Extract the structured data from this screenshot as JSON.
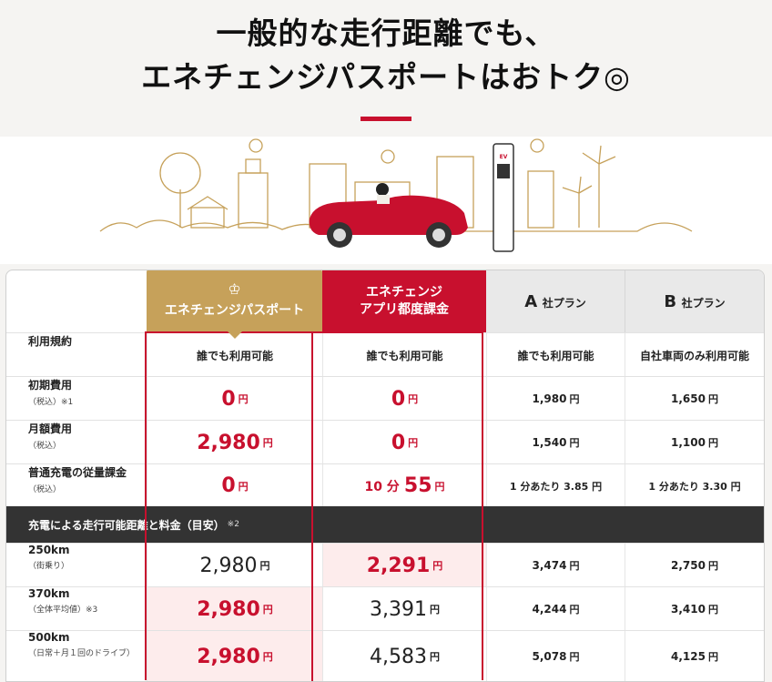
{
  "headline": {
    "line1": "一般的な走行距離でも、",
    "line2": "エネチェンジパスポートはおトク◎"
  },
  "illustration": {
    "charger_brand": "EV"
  },
  "table": {
    "headers": {
      "passport": "エネチェンジパスポート",
      "app_line1": "エネチェンジ",
      "app_line2": "アプリ都度課金",
      "a_letter": "A",
      "a_suffix": "社プラン",
      "b_letter": "B",
      "b_suffix": "社プラン"
    },
    "rows": [
      {
        "label": "利用規約",
        "sub": "",
        "passport": "誰でも利用可能",
        "app": "誰でも利用可能",
        "a": "誰でも利用可能",
        "b": "自社車両のみ利用可能"
      },
      {
        "label": "初期費用",
        "sub": "（税込）※1",
        "passport": "0",
        "passport_unit": "円",
        "app": "0",
        "app_unit": "円",
        "a": "1,980",
        "a_unit": "円",
        "b": "1,650",
        "b_unit": "円"
      },
      {
        "label": "月額費用",
        "sub": "（税込）",
        "passport": "2,980",
        "passport_unit": "円",
        "app": "0",
        "app_unit": "円",
        "a": "1,540",
        "a_unit": "円",
        "b": "1,100",
        "b_unit": "円"
      },
      {
        "label": "普通充電の従量課金",
        "sub": "（税込）",
        "passport": "0",
        "passport_unit": "円",
        "app_prefix": "10 分",
        "app": "55",
        "app_unit": "円",
        "a": "1 分あたり 3.85 円",
        "b": "1 分あたり 3.30 円"
      }
    ],
    "section_bar": {
      "label": "充電による走行可能距離と料金（目安）",
      "note": "※2"
    },
    "distance_rows": [
      {
        "label": "250km",
        "sub": "（街乗り）",
        "passport": "2,980",
        "app": "2,291",
        "a": "3,474",
        "b": "2,750",
        "unit": "円"
      },
      {
        "label": "370km",
        "sub": "（全体平均値）※3",
        "passport": "2,980",
        "app": "3,391",
        "a": "4,244",
        "b": "3,410",
        "unit": "円"
      },
      {
        "label": "500km",
        "sub": "（日常＋月１回のドライブ）",
        "passport": "2,980",
        "app": "4,583",
        "a": "5,078",
        "b": "4,125",
        "unit": "円"
      }
    ]
  }
}
